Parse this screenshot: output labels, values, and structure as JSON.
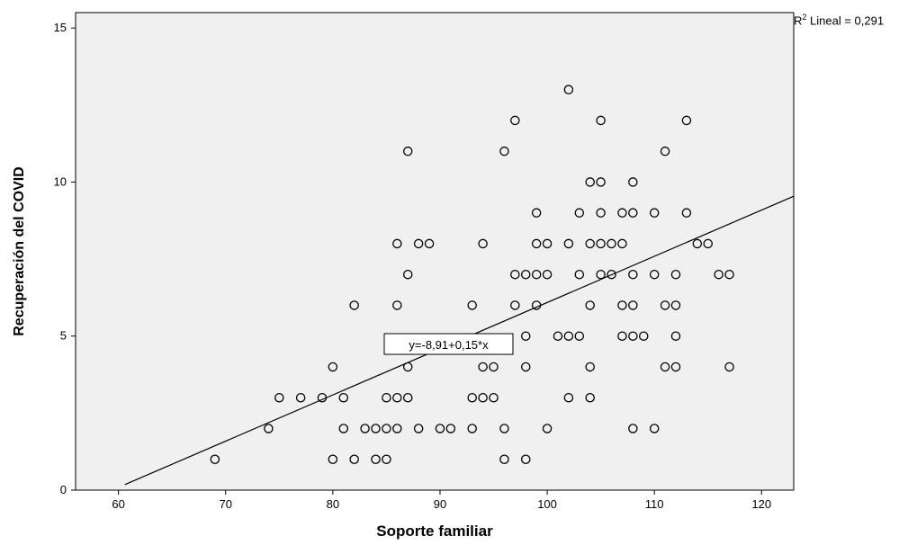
{
  "chart_data": {
    "type": "scatter",
    "xlabel": "Soporte familiar",
    "ylabel": "Recuperación del COVID",
    "xlim": [
      56,
      123
    ],
    "ylim": [
      0,
      15.5
    ],
    "x_ticks": [
      60,
      70,
      80,
      90,
      100,
      110,
      120
    ],
    "y_ticks": [
      0,
      5,
      10,
      15
    ],
    "x_tick_labels": [
      "60",
      "70",
      "80",
      "90",
      "100",
      "110",
      "120"
    ],
    "y_tick_labels": [
      "0",
      "5",
      "10",
      "15"
    ],
    "grid": false,
    "background_color": "#f0f0f0",
    "marker": "hollow-circle",
    "fit_line": {
      "intercept": -8.91,
      "slope": 0.15,
      "x_range": [
        60.6,
        123
      ]
    },
    "fit_equation_label": "y=-8,91+0,15*x",
    "r2_prefix": "R",
    "r2_superscript": "2",
    "r2_text": " Lineal = 0,291",
    "points": [
      [
        69,
        1
      ],
      [
        80,
        1
      ],
      [
        82,
        1
      ],
      [
        84,
        1
      ],
      [
        85,
        1
      ],
      [
        96,
        1
      ],
      [
        98,
        1
      ],
      [
        74,
        2
      ],
      [
        81,
        2
      ],
      [
        83,
        2
      ],
      [
        84,
        2
      ],
      [
        85,
        2
      ],
      [
        86,
        2
      ],
      [
        88,
        2
      ],
      [
        90,
        2
      ],
      [
        91,
        2
      ],
      [
        93,
        2
      ],
      [
        96,
        2
      ],
      [
        100,
        2
      ],
      [
        108,
        2
      ],
      [
        110,
        2
      ],
      [
        75,
        3
      ],
      [
        77,
        3
      ],
      [
        79,
        3
      ],
      [
        81,
        3
      ],
      [
        85,
        3
      ],
      [
        86,
        3
      ],
      [
        87,
        3
      ],
      [
        93,
        3
      ],
      [
        94,
        3
      ],
      [
        95,
        3
      ],
      [
        102,
        3
      ],
      [
        104,
        3
      ],
      [
        80,
        4
      ],
      [
        87,
        4
      ],
      [
        94,
        4
      ],
      [
        95,
        4
      ],
      [
        98,
        4
      ],
      [
        104,
        4
      ],
      [
        111,
        4
      ],
      [
        112,
        4
      ],
      [
        117,
        4
      ],
      [
        98,
        5
      ],
      [
        101,
        5
      ],
      [
        102,
        5
      ],
      [
        103,
        5
      ],
      [
        107,
        5
      ],
      [
        108,
        5
      ],
      [
        109,
        5
      ],
      [
        112,
        5
      ],
      [
        82,
        6
      ],
      [
        86,
        6
      ],
      [
        93,
        6
      ],
      [
        97,
        6
      ],
      [
        99,
        6
      ],
      [
        104,
        6
      ],
      [
        107,
        6
      ],
      [
        108,
        6
      ],
      [
        111,
        6
      ],
      [
        112,
        6
      ],
      [
        87,
        7
      ],
      [
        97,
        7
      ],
      [
        98,
        7
      ],
      [
        99,
        7
      ],
      [
        100,
        7
      ],
      [
        103,
        7
      ],
      [
        105,
        7
      ],
      [
        106,
        7
      ],
      [
        108,
        7
      ],
      [
        110,
        7
      ],
      [
        112,
        7
      ],
      [
        116,
        7
      ],
      [
        117,
        7
      ],
      [
        86,
        8
      ],
      [
        88,
        8
      ],
      [
        89,
        8
      ],
      [
        94,
        8
      ],
      [
        99,
        8
      ],
      [
        100,
        8
      ],
      [
        102,
        8
      ],
      [
        104,
        8
      ],
      [
        105,
        8
      ],
      [
        106,
        8
      ],
      [
        107,
        8
      ],
      [
        114,
        8
      ],
      [
        115,
        8
      ],
      [
        99,
        9
      ],
      [
        103,
        9
      ],
      [
        105,
        9
      ],
      [
        107,
        9
      ],
      [
        108,
        9
      ],
      [
        110,
        9
      ],
      [
        113,
        9
      ],
      [
        104,
        10
      ],
      [
        105,
        10
      ],
      [
        108,
        10
      ],
      [
        87,
        11
      ],
      [
        96,
        11
      ],
      [
        111,
        11
      ],
      [
        97,
        12
      ],
      [
        105,
        12
      ],
      [
        113,
        12
      ],
      [
        102,
        13
      ]
    ]
  }
}
